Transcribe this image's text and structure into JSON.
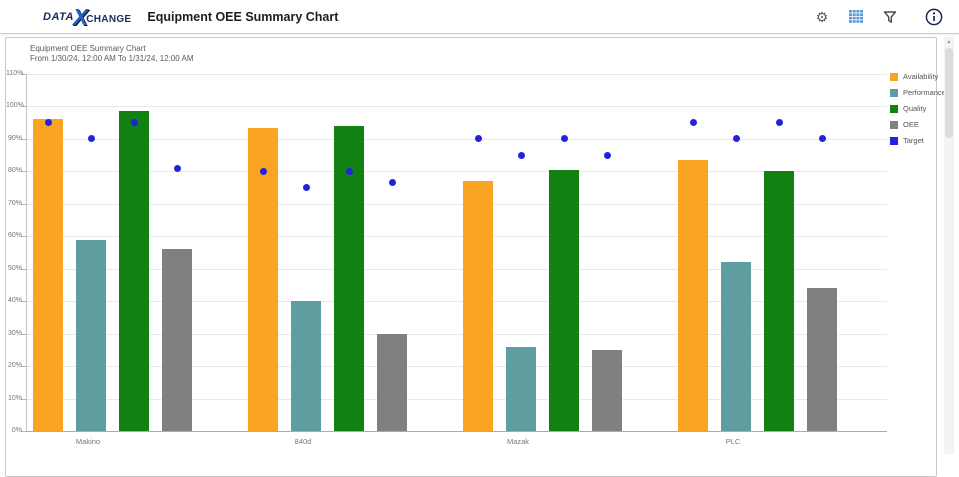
{
  "header": {
    "logo": {
      "part1": "DATA",
      "x": "X",
      "part2": "CHANGE"
    },
    "title": "Equipment OEE Summary Chart",
    "icons": [
      "menu-icon",
      "gear-icon",
      "grid-view-icon",
      "filter-icon",
      "info-icon"
    ]
  },
  "chart_card": {
    "title": "Equipment OEE Summary Chart",
    "subtitle": "From 1/30/24, 12:00 AM To 1/31/24, 12:00 AM"
  },
  "colors": {
    "availability": "#FAA423",
    "performance": "#5E9DA0",
    "quality": "#118111",
    "oee": "#808080",
    "target": "#2222DD",
    "grid_icon_blue": "#5B9BD5",
    "icon_gray": "#4a4a4a",
    "info_navy": "#1a2550"
  },
  "chart_data": {
    "type": "bar",
    "title": "Equipment OEE Summary Chart",
    "subtitle": "From 1/30/24, 12:00 AM To 1/31/24, 12:00 AM",
    "categories": [
      "Makino",
      "840d",
      "Mazak",
      "PLC"
    ],
    "series": [
      {
        "name": "Availability",
        "type": "bar",
        "color": "#FAA423",
        "values": [
          96,
          93.5,
          77,
          83.5
        ]
      },
      {
        "name": "Performance",
        "type": "bar",
        "color": "#5E9DA0",
        "values": [
          59,
          40,
          26,
          52
        ]
      },
      {
        "name": "Quality",
        "type": "bar",
        "color": "#118111",
        "values": [
          98.5,
          94,
          80.5,
          80
        ]
      },
      {
        "name": "OEE",
        "type": "bar",
        "color": "#808080",
        "values": [
          56,
          30,
          25,
          44
        ]
      },
      {
        "name": "Target",
        "type": "point",
        "color": "#2222DD",
        "values_by_category": [
          [
            95,
            90,
            95,
            81
          ],
          [
            80,
            75,
            80,
            76.5
          ],
          [
            90,
            85,
            90,
            85
          ],
          [
            95,
            90,
            95,
            90
          ]
        ]
      }
    ],
    "ylim": [
      0,
      110
    ],
    "ytick_step": 10,
    "ytick_format": "percent",
    "grid": true,
    "legend_position": "right"
  }
}
